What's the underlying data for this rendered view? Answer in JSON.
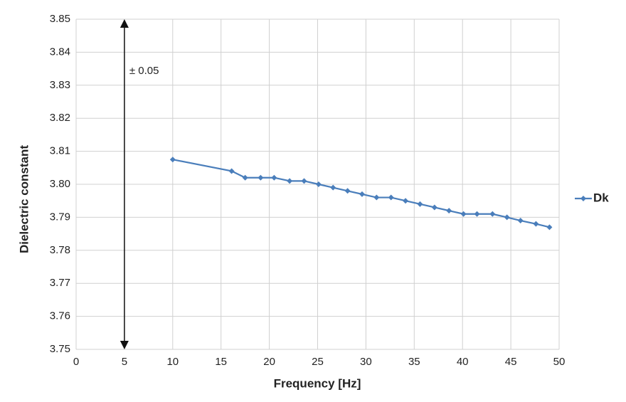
{
  "chart_data": {
    "type": "line",
    "x_label": "Frequency [Hz]",
    "y_label": "Dielectric constant",
    "series": [
      {
        "name": "Dk",
        "color": "#4a7ebb",
        "x": [
          10,
          16.1,
          17.5,
          19.1,
          20.5,
          22.1,
          23.6,
          25.1,
          26.6,
          28.1,
          29.6,
          31.1,
          32.6,
          34.1,
          35.6,
          37.1,
          38.6,
          40.1,
          41.5,
          43.1,
          44.6,
          46.0,
          47.6,
          49.0
        ],
        "values": [
          3.8075,
          3.804,
          3.802,
          3.802,
          3.802,
          3.801,
          3.801,
          3.8,
          3.799,
          3.798,
          3.797,
          3.796,
          3.796,
          3.795,
          3.794,
          3.793,
          3.792,
          3.791,
          3.791,
          3.791,
          3.79,
          3.789,
          3.788,
          3.787
        ]
      }
    ],
    "xlim": [
      0,
      50
    ],
    "xticks": [
      0,
      5,
      10,
      15,
      20,
      25,
      30,
      35,
      40,
      45,
      50
    ],
    "ylim": [
      3.75,
      3.85
    ],
    "yticks": [
      3.75,
      3.76,
      3.77,
      3.78,
      3.79,
      {
        "value": 3.8,
        "label": "3.80"
      },
      3.81,
      3.82,
      3.83,
      3.84,
      3.85
    ],
    "grid": true,
    "legend": "right",
    "annotation": {
      "text": "± 0.05",
      "x": 5,
      "y_range": [
        3.75,
        3.85
      ]
    }
  }
}
